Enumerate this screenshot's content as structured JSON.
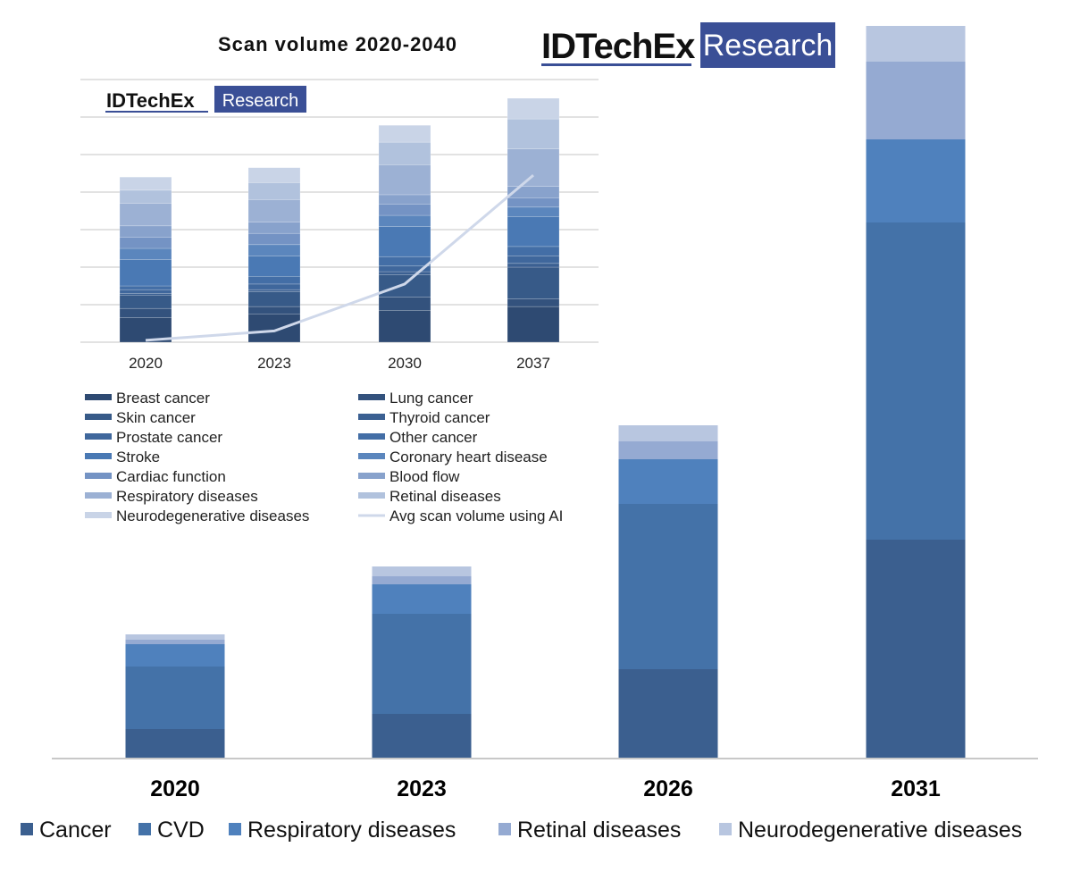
{
  "logo_main": {
    "brand": "IDTechEx",
    "tag": "Research"
  },
  "logo_inset": {
    "brand": "IDTechEx",
    "tag": "Research"
  },
  "chart_data": [
    {
      "type": "bar",
      "stacked": true,
      "title": "",
      "xlabel": "",
      "ylabel": "",
      "categories": [
        "2020",
        "2023",
        "2026",
        "2031"
      ],
      "ylim": [
        0,
        820
      ],
      "grid": false,
      "legend_position": "bottom",
      "series": [
        {
          "name": "Cancer",
          "color": "#3b5f8f",
          "values": [
            33,
            50,
            100,
            245
          ]
        },
        {
          "name": "CVD",
          "color": "#4472a8",
          "values": [
            70,
            112,
            185,
            355
          ]
        },
        {
          "name": "Respiratory diseases",
          "color": "#4f81bd",
          "values": [
            25,
            33,
            50,
            93
          ]
        },
        {
          "name": "Retinal diseases",
          "color": "#95aad2",
          "values": [
            5,
            9,
            20,
            87
          ]
        },
        {
          "name": "Neurodegenerative diseases",
          "color": "#b8c6e0",
          "values": [
            6,
            11,
            18,
            40
          ]
        }
      ]
    },
    {
      "type": "bar",
      "stacked": true,
      "title": "Scan volume 2020-2040",
      "xlabel": "",
      "ylabel": "",
      "categories": [
        "2020",
        "2023",
        "2030",
        "2037"
      ],
      "ylim": [
        0,
        7
      ],
      "grid": true,
      "legend_position": "bottom",
      "series": [
        {
          "name": "Breast cancer",
          "color": "#2e4a72",
          "values": [
            0.65,
            0.75,
            0.85,
            0.95
          ]
        },
        {
          "name": "Lung cancer",
          "color": "#33527d",
          "values": [
            0.25,
            0.2,
            0.35,
            0.2
          ]
        },
        {
          "name": "Skin cancer",
          "color": "#375a88",
          "values": [
            0.35,
            0.4,
            0.6,
            0.85
          ]
        },
        {
          "name": "Thyroid cancer",
          "color": "#3b6092",
          "values": [
            0.05,
            0.05,
            0.08,
            0.1
          ]
        },
        {
          "name": "Prostate cancer",
          "color": "#3f679c",
          "values": [
            0.1,
            0.15,
            0.15,
            0.2
          ]
        },
        {
          "name": "Other cancer",
          "color": "#436ea6",
          "values": [
            0.1,
            0.2,
            0.25,
            0.25
          ]
        },
        {
          "name": "Stroke",
          "color": "#4a79b4",
          "values": [
            0.7,
            0.55,
            0.8,
            0.8
          ]
        },
        {
          "name": "Coronary heart disease",
          "color": "#5b86bd",
          "values": [
            0.3,
            0.3,
            0.3,
            0.25
          ]
        },
        {
          "name": "Cardiac function",
          "color": "#7493c4",
          "values": [
            0.3,
            0.3,
            0.3,
            0.25
          ]
        },
        {
          "name": "Blood flow",
          "color": "#88a2cc",
          "values": [
            0.3,
            0.3,
            0.25,
            0.3
          ]
        },
        {
          "name": "Respiratory diseases",
          "color": "#9cb1d4",
          "values": [
            0.6,
            0.6,
            0.8,
            1.0
          ]
        },
        {
          "name": "Retinal diseases",
          "color": "#b1c2dd",
          "values": [
            0.35,
            0.45,
            0.6,
            0.8
          ]
        },
        {
          "name": "Neurodegenerative diseases",
          "color": "#c9d4e7",
          "values": [
            0.35,
            0.4,
            0.45,
            0.55
          ]
        }
      ],
      "line_series": {
        "name": "Avg scan volume using AI",
        "color": "#cfd8ea",
        "values": [
          0.05,
          0.3,
          1.55,
          4.45
        ]
      }
    }
  ]
}
